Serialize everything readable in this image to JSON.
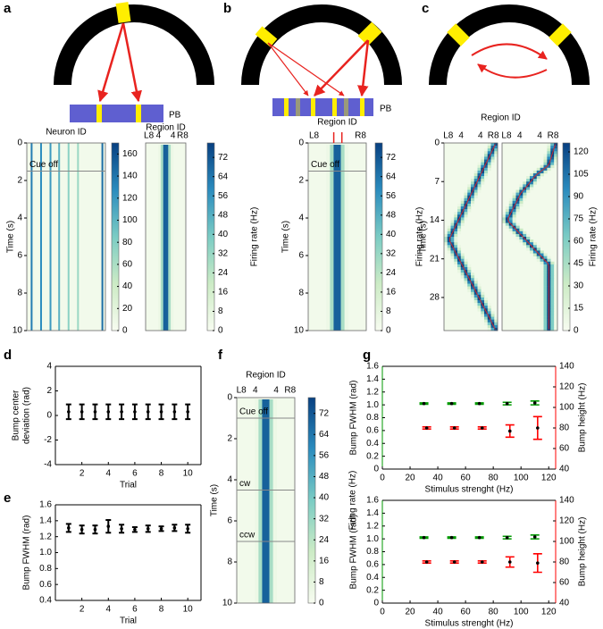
{
  "panel_labels": [
    "a",
    "b",
    "c",
    "d",
    "e",
    "f",
    "g"
  ],
  "schematics": {
    "a": {
      "label": "PB"
    },
    "b": {
      "label": "PB"
    }
  },
  "heatmaps": [
    {
      "xlabel": "Neuron ID",
      "ylabel": "Time (s)",
      "ylim": [
        0,
        10
      ],
      "yticks": [
        0,
        2,
        4,
        6,
        8,
        10
      ],
      "annotations": [
        {
          "text": "Cue off",
          "time": 1.5
        }
      ],
      "clim": [
        0,
        170
      ],
      "cticks": [
        0,
        20,
        40,
        60,
        80,
        100,
        120,
        140,
        160
      ]
    },
    {
      "xlabel": "Region ID",
      "xticklabels": [
        "L8",
        "4",
        "4",
        "R8"
      ],
      "ylim": [
        0,
        10
      ],
      "clim": [
        0,
        78
      ],
      "cticks": [
        0,
        8,
        16,
        24,
        32,
        40,
        48,
        56,
        64,
        72
      ],
      "clabel": "Firing rate (Hz)"
    },
    {
      "xlabel": "Region ID",
      "xticklabels": [
        "L8",
        "R8"
      ],
      "ylabel": "Time (s)",
      "ylim": [
        0,
        10
      ],
      "yticks": [
        0,
        2,
        4,
        6,
        8,
        10
      ],
      "annotations": [
        {
          "text": "Cue off",
          "time": 1.5
        }
      ],
      "clim": [
        0,
        78
      ],
      "cticks": [
        0,
        8,
        16,
        24,
        32,
        40,
        48,
        56,
        64,
        72
      ],
      "clabel": "Firing rate (Hz)"
    },
    {
      "xlabel": "Region ID",
      "xticklabels": [
        "L8",
        "4",
        "4",
        "R8",
        "L8",
        "4",
        "4",
        "R8"
      ],
      "ylabel": "Time (s)",
      "ylim": [
        0,
        34
      ],
      "yticks": [
        0,
        7,
        14,
        21,
        28
      ],
      "clim": [
        0,
        126
      ],
      "cticks": [
        0,
        15,
        30,
        45,
        60,
        75,
        90,
        105,
        120
      ],
      "clabel": "Firing rate (Hz)"
    },
    {
      "xlabel": "Region ID",
      "xticklabels": [
        "L8",
        "4",
        "4",
        "R8"
      ],
      "ylabel": "Time (s)",
      "ylim": [
        0,
        10
      ],
      "yticks": [
        0,
        2,
        4,
        6,
        8,
        10
      ],
      "annotations": [
        {
          "text": "Cue off",
          "time": 1
        },
        {
          "text": "cw",
          "time": 4.5
        },
        {
          "text": "ccw",
          "time": 7
        }
      ],
      "clim": [
        0,
        78
      ],
      "cticks": [
        0,
        8,
        16,
        24,
        32,
        40,
        48,
        56,
        64,
        72
      ],
      "clabel": "Firing rate (Hz)"
    }
  ],
  "chart_data": [
    {
      "type": "errorbar",
      "xlabel": "Trial",
      "ylabel": [
        "Bump center",
        "deviation (rad)"
      ],
      "x": [
        1,
        2,
        3,
        4,
        5,
        6,
        7,
        8,
        9,
        10
      ],
      "series": [
        {
          "color": "#000000",
          "values": [
            0.3,
            0.3,
            0.3,
            0.3,
            0.3,
            0.3,
            0.3,
            0.3,
            0.3,
            0.3
          ],
          "errors": [
            0.6,
            0.6,
            0.6,
            0.6,
            0.6,
            0.6,
            0.6,
            0.6,
            0.6,
            0.6
          ]
        }
      ],
      "xlim": [
        0,
        11
      ],
      "xticks": [
        2,
        4,
        6,
        8,
        10
      ],
      "ylim": [
        -4,
        4
      ],
      "yticks": [
        -4,
        -2,
        0,
        2,
        4
      ]
    },
    {
      "type": "errorbar",
      "xlabel": "Trial",
      "ylabel": [
        "Bump FWHM (rad)"
      ],
      "x": [
        1,
        2,
        3,
        4,
        5,
        6,
        7,
        8,
        9,
        10
      ],
      "series": [
        {
          "color": "#000000",
          "values": [
            1.31,
            1.29,
            1.29,
            1.33,
            1.3,
            1.29,
            1.3,
            1.3,
            1.31,
            1.3
          ],
          "errors": [
            0.05,
            0.05,
            0.05,
            0.08,
            0.05,
            0.03,
            0.04,
            0.03,
            0.04,
            0.05
          ]
        }
      ],
      "xlim": [
        0,
        11
      ],
      "xticks": [
        2,
        4,
        6,
        8,
        10
      ],
      "ylim": [
        0.4,
        1.6
      ],
      "yticks": [
        0.4,
        0.6,
        0.8,
        {
          "value": 1,
          "label": "1.0"
        },
        1.2,
        1.4,
        1.6
      ]
    },
    {
      "type": "errorbar",
      "xlabel": "Stimulus strenght (Hz)",
      "ylabel": [
        "Bump FWHM (rad)"
      ],
      "y2label": "Bump height (Hz)",
      "series": [
        {
          "color": "#009900",
          "x": [
            30,
            50,
            70,
            90,
            110
          ],
          "values": [
            1.02,
            1.02,
            1.02,
            1.02,
            1.03
          ],
          "errors": [
            0.01,
            0.01,
            0.01,
            0.02,
            0.03
          ]
        },
        {
          "color": "#ff0000",
          "axis": "y2",
          "x": [
            32,
            52,
            72,
            92,
            112
          ],
          "values": [
            80,
            80,
            80,
            77,
            80
          ],
          "errors": [
            1,
            1,
            1,
            6,
            11
          ]
        }
      ],
      "xlim": [
        0,
        125
      ],
      "xticks": [
        0,
        20,
        40,
        60,
        80,
        100,
        120
      ],
      "ylim": [
        0,
        1.6
      ],
      "yticks": [
        0,
        0.2,
        0.4,
        0.6,
        0.8,
        {
          "value": 1,
          "label": "1.0"
        },
        1.2,
        1.4,
        1.6
      ],
      "y2lim": [
        40,
        140
      ],
      "y2ticks": [
        40,
        60,
        80,
        100,
        120,
        140
      ]
    },
    {
      "type": "errorbar",
      "xlabel": "Stimulus strenght (Hz)",
      "ylabel": [
        "Bump FWHM (rad)"
      ],
      "y2label": "Bump height (Hz)",
      "series": [
        {
          "color": "#009900",
          "x": [
            30,
            50,
            70,
            90,
            110
          ],
          "values": [
            1.02,
            1.02,
            1.02,
            1.02,
            1.03
          ],
          "errors": [
            0.01,
            0.01,
            0.01,
            0.02,
            0.03
          ]
        },
        {
          "color": "#ff0000",
          "axis": "y2",
          "x": [
            32,
            52,
            72,
            92,
            112
          ],
          "values": [
            80,
            80,
            80,
            80,
            79
          ],
          "errors": [
            1,
            1,
            1,
            5,
            9
          ]
        }
      ],
      "xlim": [
        0,
        125
      ],
      "xticks": [
        0,
        20,
        40,
        60,
        80,
        100,
        120
      ],
      "ylim": [
        0,
        1.6
      ],
      "yticks": [
        0,
        0.2,
        0.4,
        0.6,
        0.8,
        {
          "value": 1,
          "label": "1.0"
        },
        1.2,
        1.4,
        1.6
      ],
      "y2lim": [
        40,
        140
      ],
      "y2ticks": [
        40,
        60,
        80,
        100,
        120,
        140
      ]
    }
  ]
}
